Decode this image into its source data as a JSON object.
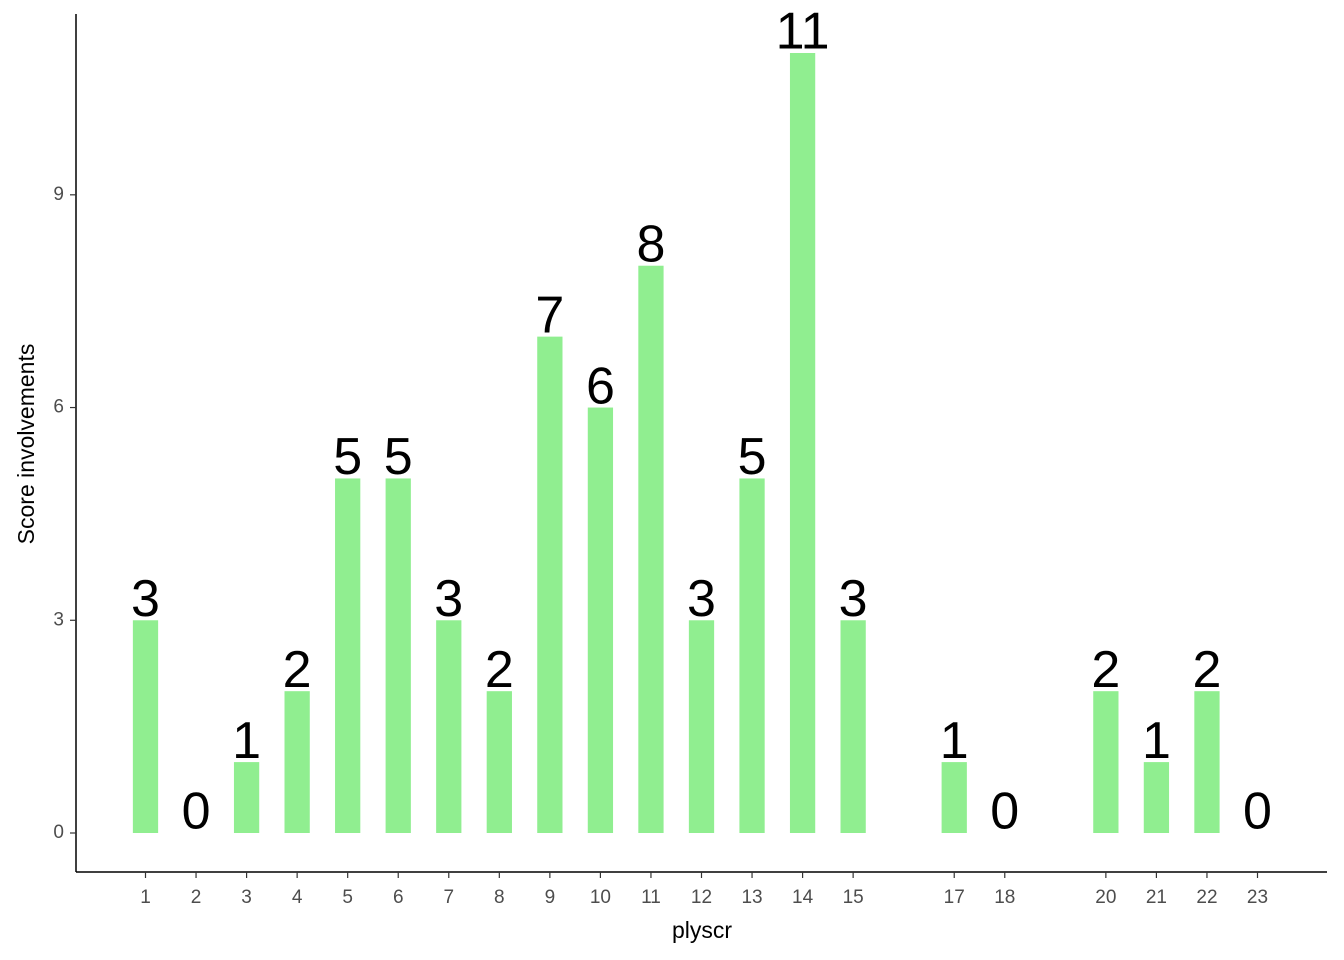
{
  "chart_data": {
    "type": "bar",
    "x": [
      1,
      2,
      3,
      4,
      5,
      6,
      7,
      8,
      9,
      10,
      11,
      12,
      13,
      14,
      15,
      17,
      18,
      20,
      21,
      22,
      23
    ],
    "values": [
      3,
      0,
      1,
      2,
      5,
      5,
      3,
      2,
      7,
      6,
      8,
      3,
      5,
      11,
      3,
      1,
      0,
      2,
      1,
      2,
      0
    ],
    "color": "#90ee90",
    "xlabel": "plyscr",
    "ylabel": "Score involvements",
    "xlim": [
      -0.375,
      24.375
    ],
    "xticks": [
      1,
      2,
      3,
      4,
      5,
      6,
      7,
      8,
      9,
      10,
      11,
      12,
      13,
      14,
      15,
      17,
      18,
      20,
      21,
      22,
      23
    ],
    "ylim": [
      -0.55,
      11.55
    ],
    "yticks": [
      0,
      3,
      6,
      9
    ],
    "grid": false
  }
}
